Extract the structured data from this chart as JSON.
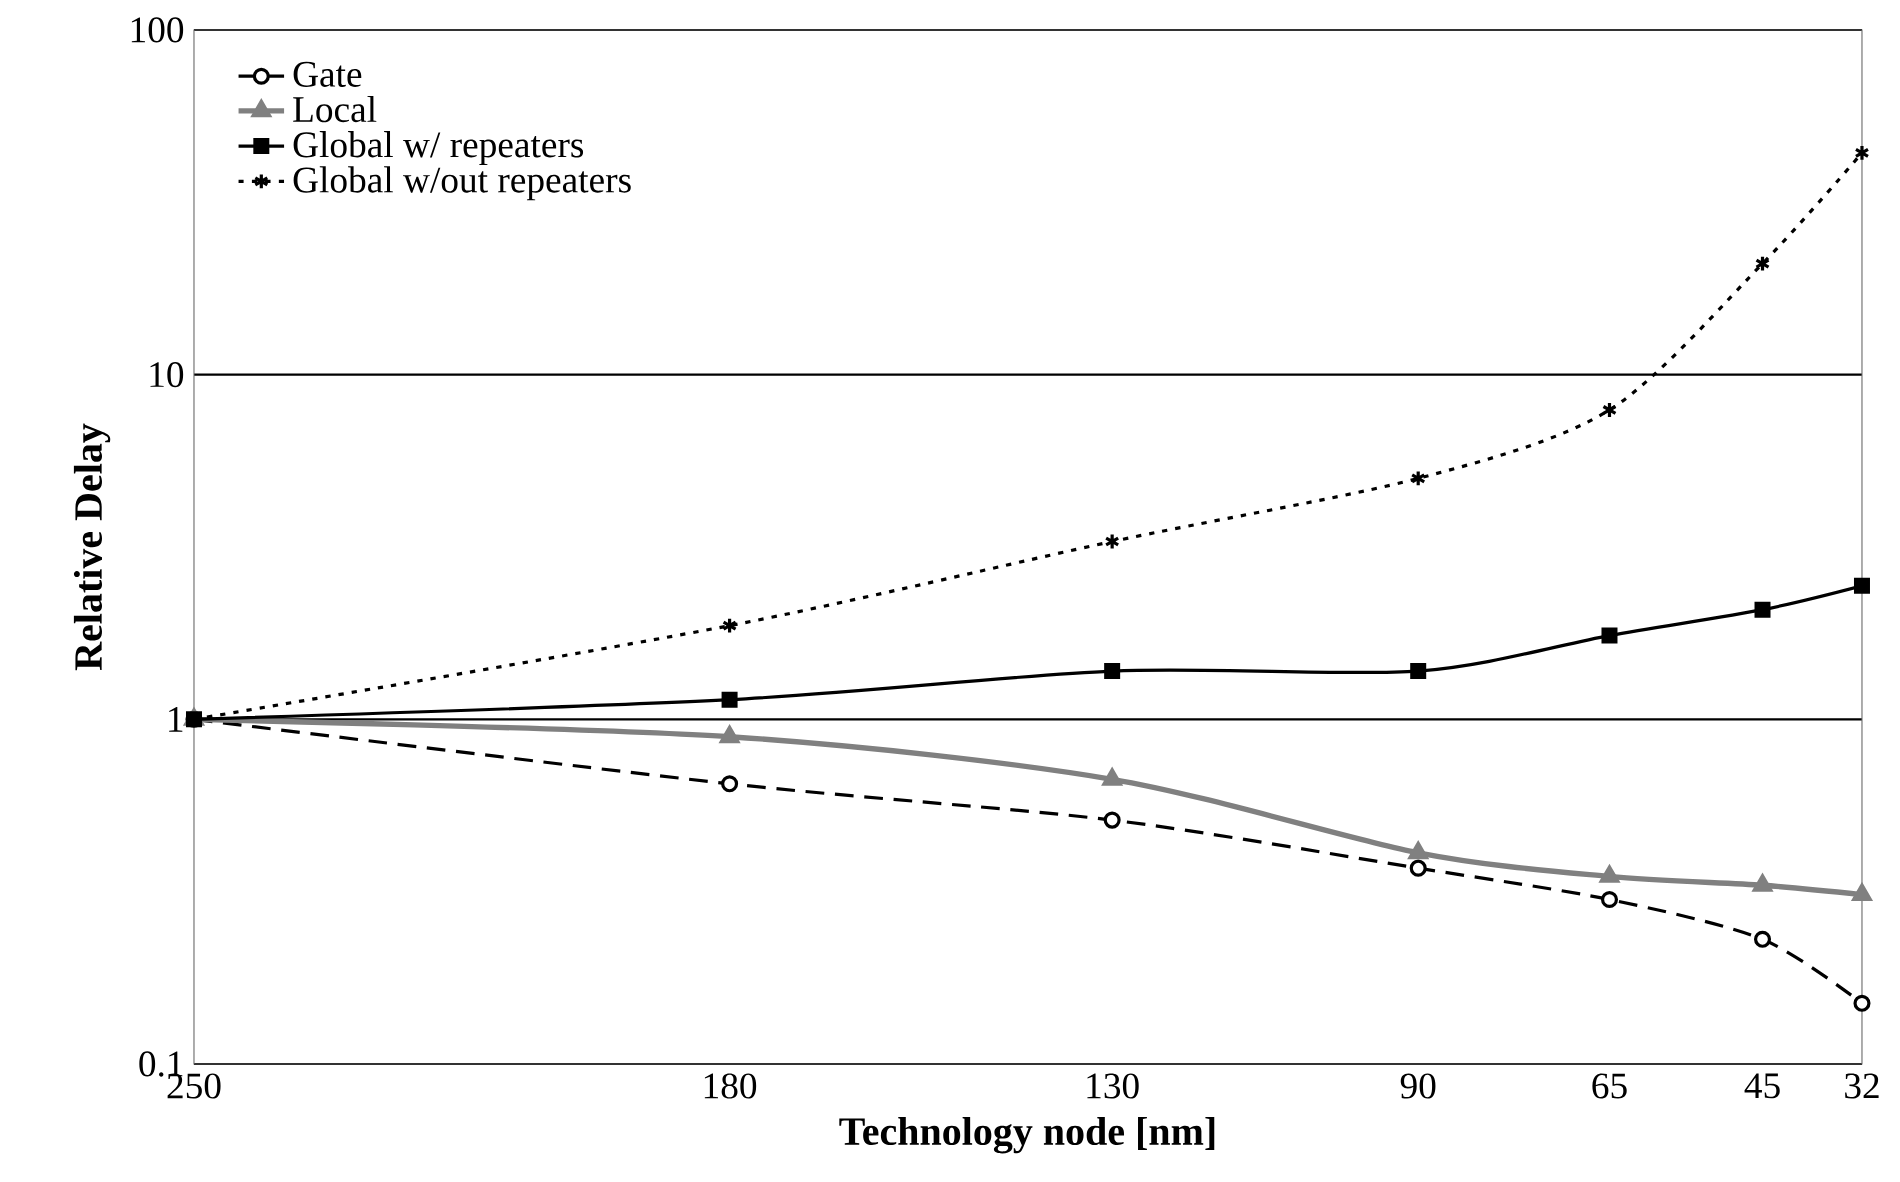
{
  "chart_data": {
    "type": "line",
    "xlabel": "Technology node [nm]",
    "ylabel": "Relative Delay",
    "x": [
      250,
      180,
      130,
      90,
      65,
      45,
      32
    ],
    "xlim": [
      250,
      32
    ],
    "xticks": [
      250,
      180,
      130,
      90,
      65,
      45,
      32
    ],
    "ylim": [
      0.1,
      100
    ],
    "yticks": [
      0.1,
      1,
      10,
      100
    ],
    "log": "y",
    "grid": "y",
    "legend": "top left",
    "series": [
      {
        "name": "Gate",
        "color": "#000000",
        "marker": "circle",
        "line_style": "dashed",
        "values": [
          1,
          0.65,
          0.51,
          0.37,
          0.3,
          0.23,
          0.15
        ]
      },
      {
        "name": "Local",
        "color": "#808080",
        "marker": "triangle",
        "line_style": "solid",
        "values": [
          1,
          0.89,
          0.67,
          0.41,
          0.35,
          0.33,
          0.31
        ]
      },
      {
        "name": "Global w/ repeaters",
        "color": "#000000",
        "marker": "square",
        "line_style": "solid",
        "values": [
          1,
          1.14,
          1.38,
          1.38,
          1.75,
          2.08,
          2.44
        ]
      },
      {
        "name": "Global w/out repeaters",
        "color": "#000000",
        "marker": "cross",
        "line_style": "dotted",
        "values": [
          1,
          1.87,
          3.28,
          5.0,
          7.9,
          21,
          44
        ]
      }
    ]
  }
}
